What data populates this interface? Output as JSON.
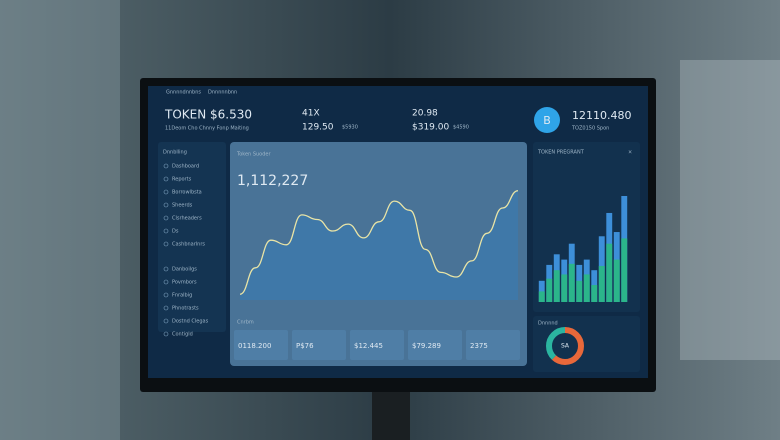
{
  "header": {
    "menu": [
      "Gnnnndnnbns",
      "Dnnnnnbnn"
    ],
    "token_title": "TOKEN $6.530",
    "token_sub": "11Deom Cho Chnny Fonp Maiting",
    "stat1_top": "41X",
    "stat1_value": "129.50",
    "stat1_sub": "$5930",
    "stat2_top": "20.98",
    "stat2_value": "$319.00",
    "stat2_sub": "$4590",
    "badge": "B",
    "balance": "12110.480",
    "balance_sub": "TOZ0150 Spon"
  },
  "sidebar": {
    "title": "Dnnblling",
    "items": [
      "Dashboard",
      "Reports",
      "Borrowlbsta",
      "Sheerds",
      "Clsrheaders",
      "Ds",
      "Cashbnarlnrs"
    ],
    "items2": [
      "Danboilgs",
      "Povmbors",
      "Fnralbig",
      "Phnotrasts",
      "Dostnd Clegas",
      "Contigld"
    ]
  },
  "main_chart": {
    "type": "area",
    "title": "Token Suoder",
    "total": "1,112,227",
    "values": [
      5,
      28,
      52,
      48,
      74,
      70,
      60,
      66,
      54,
      68,
      86,
      78,
      44,
      24,
      20,
      34,
      58,
      80,
      95
    ],
    "ylim": [
      0,
      100
    ],
    "color": "#3f78a8",
    "line_color": "#e9e4a6"
  },
  "cards": {
    "title": "Cnrbm",
    "values": [
      "0118.200",
      "P$76",
      "$12.445",
      "$79.289",
      "2375"
    ]
  },
  "bar_chart": {
    "type": "bar",
    "title": "TOKEN PREGRANT",
    "ylim": [
      0,
      100
    ],
    "series": [
      {
        "color": "#3d8fd9",
        "values": [
          20,
          35,
          45,
          40,
          55,
          35,
          40,
          30,
          62,
          84,
          66,
          100
        ]
      },
      {
        "color": "#2bb58a",
        "values": [
          10,
          22,
          30,
          26,
          36,
          20,
          26,
          16,
          34,
          55,
          40,
          60
        ]
      }
    ]
  },
  "donut": {
    "type": "pie",
    "title": "Dnnnnd",
    "center": "SA",
    "values": [
      62,
      38
    ],
    "colors": [
      "#e8683a",
      "#2bb5a0"
    ]
  }
}
